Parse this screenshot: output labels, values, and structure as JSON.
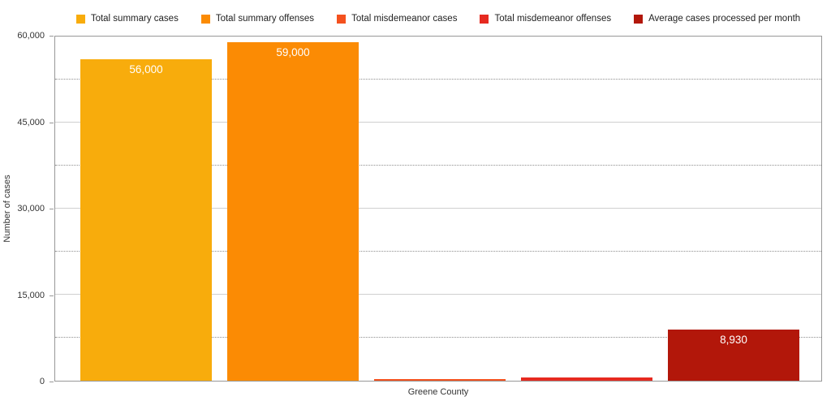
{
  "chart_data": {
    "type": "bar",
    "categories": [
      "Greene County"
    ],
    "series": [
      {
        "name": "Total summary cases",
        "color": "#F8AC0C",
        "values": [
          56000
        ],
        "value_label": "56,000"
      },
      {
        "name": "Total summary offenses",
        "color": "#FB8B04",
        "values": [
          59000
        ],
        "value_label": "59,000"
      },
      {
        "name": "Total misdemeanor cases",
        "color": "#F4511E",
        "values": [
          300
        ],
        "value_label": ""
      },
      {
        "name": "Total misdemeanor offenses",
        "color": "#E62A20",
        "values": [
          500
        ],
        "value_label": ""
      },
      {
        "name": "Average cases processed per month",
        "color": "#B2170A",
        "values": [
          8930
        ],
        "value_label": "8,930"
      }
    ],
    "title": "",
    "xlabel": "Greene County",
    "ylabel": "Number of cases",
    "ylim": [
      0,
      60000
    ],
    "yticks": [
      0,
      15000,
      30000,
      45000,
      60000
    ],
    "ytick_labels": [
      "0",
      "15,000",
      "30,000",
      "45,000",
      "60,000"
    ],
    "minor_gridlines": [
      7500,
      22500,
      37500,
      52500
    ],
    "grid": "major-solid, minor-dotted",
    "legend_position": "top",
    "colors": {
      "plot_border": "#989898",
      "major_gridline": "#cfcfcf",
      "minor_gridline": "#8f8f8f",
      "axis_text": "#333333",
      "bar_label_text": "#ffffff"
    }
  }
}
